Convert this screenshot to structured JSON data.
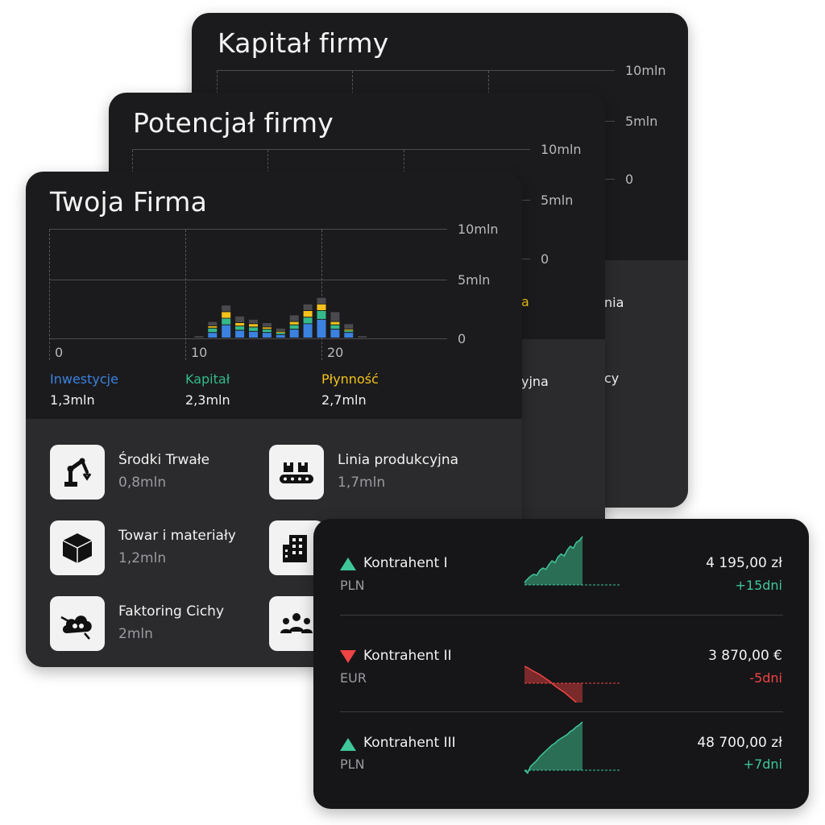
{
  "colors": {
    "investments": "#3b82e0",
    "capital": "#34b98a",
    "liquidity": "#f4c21a",
    "positive": "#3fc79a",
    "negative": "#ef4444",
    "card_bg": "#1b1b1d",
    "card_zone": "#2b2b2d"
  },
  "cards": {
    "kapital": {
      "title": "Kapitał firmy",
      "y_ticks": [
        "10mln",
        "5mln",
        "0"
      ],
      "peek_labels": [
        "nia",
        "cy"
      ]
    },
    "potencjal": {
      "title": "Potencjał firmy",
      "y_ticks": [
        "10mln",
        "5mln",
        "0"
      ],
      "peek_labels": [
        "a",
        "yjna"
      ]
    },
    "twoja_firma": {
      "title": "Twoja Firma",
      "legend": [
        {
          "label": "Inwestycje",
          "value": "1,3mln",
          "color_key": "investments"
        },
        {
          "label": "Kapitał",
          "value": "2,3mln",
          "color_key": "capital"
        },
        {
          "label": "Płynność",
          "value": "2,7mln",
          "color_key": "liquidity"
        }
      ],
      "assets": [
        {
          "name": "Środki Trwałe",
          "value": "0,8mln",
          "icon": "robot-arm-icon"
        },
        {
          "name": "Linia produkcyjna",
          "value": "1,7mln",
          "icon": "conveyor-belt-icon"
        },
        {
          "name": "Towar i materiały",
          "value": "1,2mln",
          "icon": "cube-box-icon"
        },
        {
          "name": "",
          "value": "",
          "icon": "buildings-icon"
        },
        {
          "name": "Faktoring Cichy",
          "value": "2mln",
          "icon": "cloud-factoring-icon"
        },
        {
          "name": "",
          "value": "",
          "icon": "team-people-icon"
        }
      ]
    }
  },
  "chart_data": {
    "type": "bar",
    "stacked": true,
    "xlabel": "",
    "ylabel": "",
    "x_ticks": [
      "0",
      "10",
      "20"
    ],
    "y_ticks": [
      "10mln",
      "5mln",
      "0"
    ],
    "xlim": [
      0,
      33
    ],
    "ylim": [
      0,
      10
    ],
    "unit": "mln",
    "x": [
      11,
      12,
      13,
      14,
      15,
      16,
      17,
      18,
      19,
      20,
      21,
      22,
      23
    ],
    "series": [
      {
        "name": "Inwestycje",
        "color_key": "investments",
        "values": [
          0,
          0.5,
          1.2,
          0.7,
          0.6,
          0.5,
          0.3,
          0.8,
          1.3,
          1.7,
          0.8,
          0.5,
          0
        ]
      },
      {
        "name": "Kapitał",
        "color_key": "capital",
        "values": [
          0,
          0.4,
          0.6,
          0.4,
          0.4,
          0.3,
          0.2,
          0.4,
          0.6,
          0.8,
          0.4,
          0.2,
          0
        ]
      },
      {
        "name": "Płynność",
        "color_key": "liquidity",
        "values": [
          0,
          0.2,
          0.6,
          0.3,
          0.3,
          0.2,
          0.1,
          0.3,
          0.6,
          0.6,
          0.3,
          0.1,
          0
        ]
      },
      {
        "name": "",
        "color_key": "grey",
        "values": [
          0.2,
          0.4,
          0.6,
          0.6,
          0.4,
          0.4,
          0.3,
          0.6,
          0.6,
          0.6,
          0.9,
          0.5,
          0.2
        ]
      }
    ]
  },
  "kontrahenci": [
    {
      "name": "Kontrahent I",
      "currency": "PLN",
      "amount": "4 195,00 zł",
      "days": "+15dni",
      "trend": "up",
      "spark": [
        0.05,
        0.12,
        0.18,
        0.22,
        0.2,
        0.3,
        0.35,
        0.32,
        0.42,
        0.5,
        0.46,
        0.58,
        0.64,
        0.6,
        0.72,
        0.8,
        0.76,
        0.88,
        0.92,
        1.0
      ]
    },
    {
      "name": "Kontrahent II",
      "currency": "EUR",
      "amount": "3 870,00 €",
      "days": "-5dni",
      "trend": "down",
      "spark": [
        0.55,
        0.5,
        0.42,
        0.36,
        0.3,
        0.22,
        0.14,
        0.06,
        -0.05,
        -0.14,
        -0.22,
        -0.3,
        -0.4,
        -0.5,
        -0.6,
        -0.72,
        -0.85
      ]
    },
    {
      "name": "Kontrahent III",
      "currency": "PLN",
      "amount": "48 700,00 zł",
      "days": "+7dni",
      "trend": "up",
      "spark": [
        0.0,
        -0.06,
        0.08,
        0.14,
        0.2,
        0.28,
        0.34,
        0.4,
        0.46,
        0.52,
        0.56,
        0.62,
        0.66,
        0.7,
        0.74,
        0.8,
        0.84,
        0.9,
        0.94,
        1.0
      ]
    }
  ]
}
